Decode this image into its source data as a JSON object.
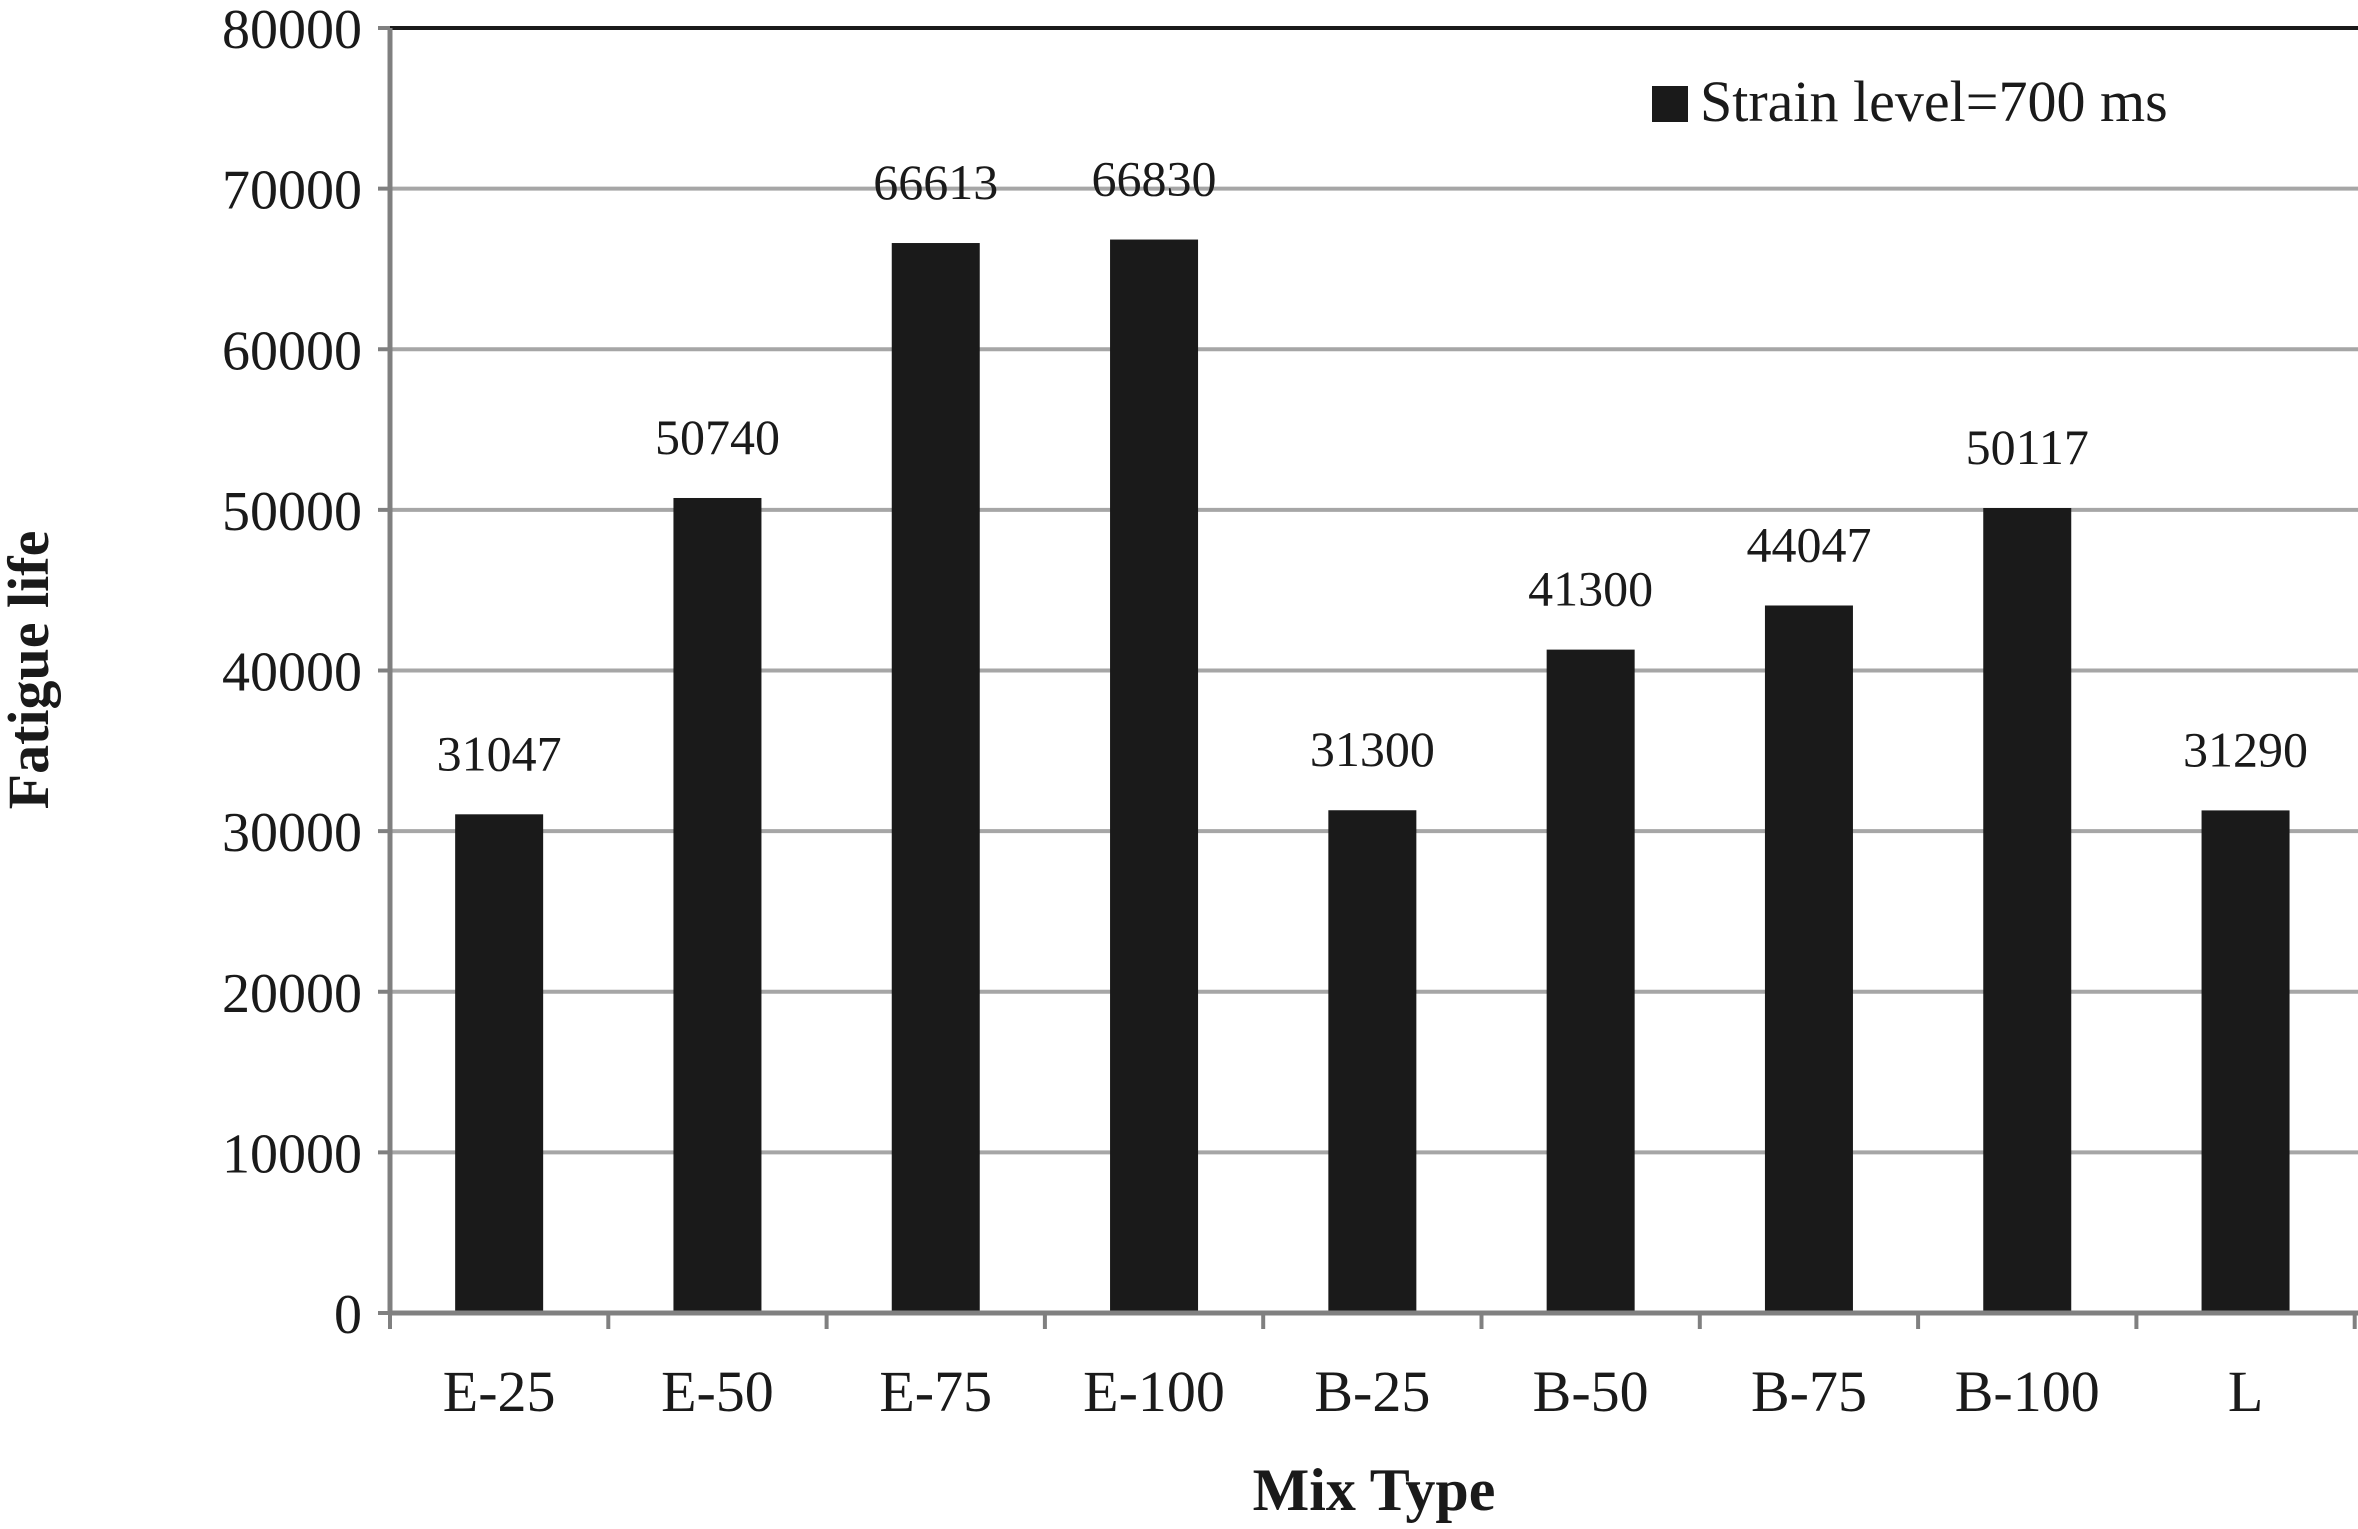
{
  "chart_data": {
    "type": "bar",
    "title": "",
    "xlabel": "Mix Type",
    "ylabel": "Fatigue life",
    "categories": [
      "E-25",
      "E-50",
      "E-75",
      "E-100",
      "B-25",
      "B-50",
      "B-75",
      "B-100",
      "L"
    ],
    "series": [
      {
        "name": "Strain level=700 ms",
        "values": [
          31047,
          50740,
          66613,
          66830,
          31300,
          41300,
          44047,
          50117,
          31290
        ],
        "color": "#1a1a1a"
      }
    ],
    "data_labels": [
      "31047",
      "50740",
      "66613",
      "66830",
      "31300",
      "41300",
      "44047",
      "50117",
      "31290"
    ],
    "ylim": [
      0,
      80000
    ],
    "yticks": [
      0,
      10000,
      20000,
      30000,
      40000,
      50000,
      60000,
      70000,
      80000
    ],
    "ytick_labels": [
      "0",
      "10000",
      "20000",
      "30000",
      "40000",
      "50000",
      "60000",
      "70000",
      "80000"
    ],
    "grid": true,
    "legend": {
      "position": "top-right",
      "label": "Strain level=700 ms"
    },
    "colors": {
      "bar": "#1a1a1a",
      "grid": "#a6a6a6",
      "axis": "#808080",
      "text": "#1a1a1a"
    }
  }
}
